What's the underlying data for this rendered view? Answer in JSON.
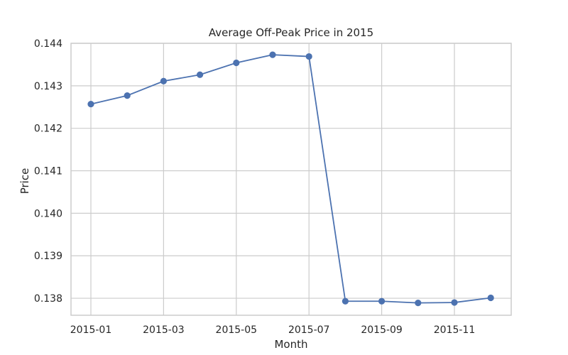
{
  "chart_data": {
    "type": "line",
    "title": "Average Off-Peak Price in 2015",
    "xlabel": "Month",
    "ylabel": "Price",
    "x": [
      "2015-01",
      "2015-02",
      "2015-03",
      "2015-04",
      "2015-05",
      "2015-06",
      "2015-07",
      "2015-08",
      "2015-09",
      "2015-10",
      "2015-11",
      "2015-12"
    ],
    "x_ticks": [
      "2015-01",
      "2015-03",
      "2015-05",
      "2015-07",
      "2015-09",
      "2015-11"
    ],
    "y_ticks": [
      "0.138",
      "0.139",
      "0.140",
      "0.141",
      "0.142",
      "0.143",
      "0.144"
    ],
    "ylim": [
      0.1376,
      0.144
    ],
    "series": [
      {
        "name": "Average Off-Peak Price",
        "color": "#4c72b0",
        "values": [
          0.14257,
          0.14277,
          0.14311,
          0.14326,
          0.14354,
          0.14373,
          0.14369,
          0.13793,
          0.13793,
          0.13789,
          0.1379,
          0.13801
        ]
      }
    ],
    "grid": true
  }
}
